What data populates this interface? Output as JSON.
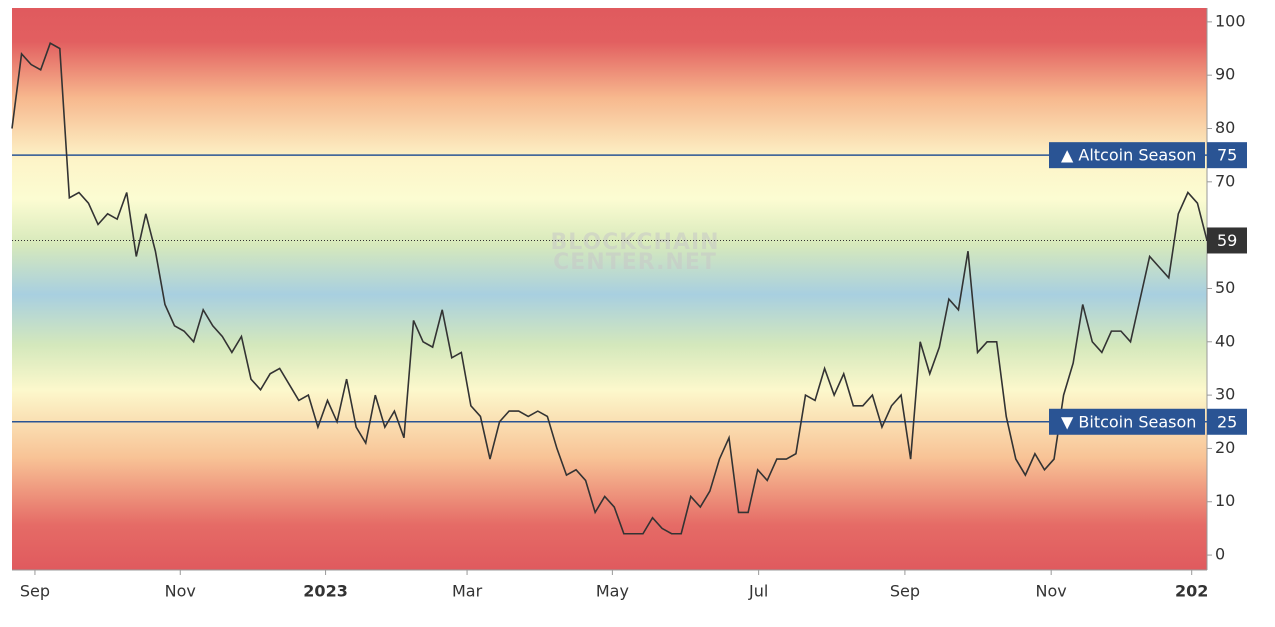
{
  "chart_data": {
    "type": "line",
    "watermark": [
      "BLOCKCHAIN",
      "CENTER.NET"
    ],
    "values": [
      80,
      94,
      92,
      91,
      96,
      95,
      67,
      68,
      66,
      62,
      64,
      63,
      68,
      56,
      64,
      57,
      47,
      43,
      42,
      40,
      46,
      43,
      41,
      38,
      41,
      33,
      31,
      34,
      35,
      32,
      29,
      30,
      24,
      29,
      25,
      33,
      24,
      21,
      30,
      24,
      27,
      22,
      44,
      40,
      39,
      46,
      37,
      38,
      28,
      26,
      18,
      25,
      27,
      27,
      26,
      27,
      26,
      20,
      15,
      16,
      14,
      8,
      11,
      9,
      4,
      4,
      4,
      7,
      5,
      4,
      4,
      11,
      9,
      12,
      18,
      22,
      8,
      8,
      16,
      14,
      18,
      18,
      19,
      30,
      29,
      35,
      30,
      34,
      28,
      28,
      30,
      24,
      28,
      30,
      18,
      40,
      34,
      39,
      48,
      46,
      57,
      38,
      40,
      40,
      26,
      18,
      15,
      19,
      16,
      18,
      30,
      36,
      47,
      40,
      38,
      42,
      42,
      40,
      48,
      56,
      54,
      52,
      64,
      68,
      66,
      59
    ],
    "color": "#333333",
    "xlim": [
      0,
      125
    ],
    "xticks": [
      {
        "value": 2.4,
        "label": "Sep"
      },
      {
        "value": 17.6,
        "label": "Nov"
      },
      {
        "value": 32.8,
        "label": "2023"
      },
      {
        "value": 47.6,
        "label": "Mar"
      },
      {
        "value": 62.8,
        "label": "May"
      },
      {
        "value": 78.1,
        "label": "Jul"
      },
      {
        "value": 93.4,
        "label": "Sep"
      },
      {
        "value": 108.7,
        "label": "Nov"
      },
      {
        "value": 123.4,
        "label": "202"
      }
    ],
    "ylim": [
      -2.8,
      102.6
    ],
    "yticks": [
      0,
      10,
      20,
      30,
      40,
      50,
      60,
      70,
      80,
      90,
      100
    ],
    "thresholds": [
      {
        "value": 75,
        "label": "▲ Altcoin Season"
      },
      {
        "value": 25,
        "label": "▼ Bitcoin Season"
      }
    ],
    "threshold_color": "#2a5494"
  }
}
